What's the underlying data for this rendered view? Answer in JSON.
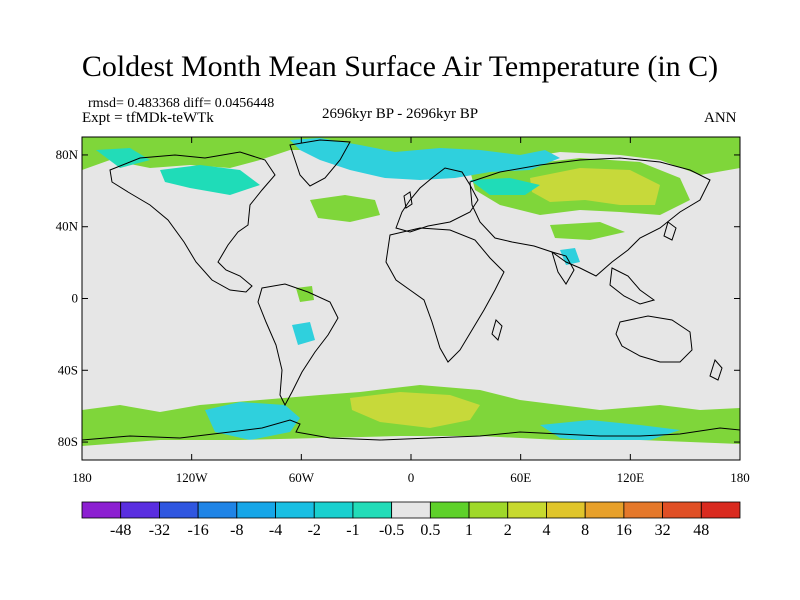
{
  "title": "Coldest Month Mean Surface Air Temperature (in C)",
  "stats": "rmsd= 0.483368  diff= 0.0456448",
  "experiment": "Expt = tfMDk-teWTk",
  "period": "2696kyr BP - 2696kyr BP",
  "season": "ANN",
  "axes": {
    "lat_labels": [
      "80N",
      "40N",
      "0",
      "40S",
      "80S"
    ],
    "lon_labels": [
      "180",
      "120W",
      "60W",
      "0",
      "60E",
      "120E",
      "180"
    ]
  },
  "colorbar": {
    "labels": [
      "-48",
      "-32",
      "-16",
      "-8",
      "-4",
      "-2",
      "-1",
      "-0.5",
      "0.5",
      "1",
      "2",
      "4",
      "8",
      "16",
      "32",
      "48"
    ],
    "colors": [
      "#8c1fd1",
      "#5a2ee0",
      "#2f56e0",
      "#1f84e6",
      "#16a6e8",
      "#19bfe3",
      "#19d0cf",
      "#22dcb8",
      "#e6e6e6",
      "#5ed12a",
      "#9fd82a",
      "#c7d92f",
      "#e0c52b",
      "#e7a02a",
      "#e5782a",
      "#e04f25",
      "#d92a1f"
    ]
  },
  "palette": {
    "background": "#e6e6e6",
    "green": "#7fd63a",
    "light_green": "#a6dc3a",
    "yellow_green": "#c7d93a",
    "cyan": "#2fd0dd",
    "aqua": "#1fdcb8",
    "coast": "#000000"
  }
}
